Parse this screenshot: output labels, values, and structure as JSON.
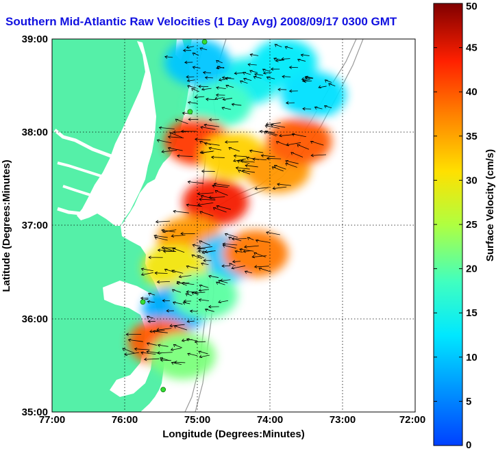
{
  "title": "Southern Mid-Atlantic Raw Velocities (1 Day Avg) 2008/09/17 0300 GMT",
  "map": {
    "xlabel": "Longitude (Degrees:Minutes)",
    "ylabel": "Latitude (Degrees:Minutes)",
    "x_ticks": [
      "77:00",
      "76:00",
      "75:00",
      "74:00",
      "73:00",
      "72:00"
    ],
    "y_ticks": [
      "39:00",
      "38:00",
      "37:00",
      "36:00",
      "35:00"
    ],
    "xlim": [
      -77,
      -72
    ],
    "ylim": [
      35,
      39
    ],
    "grid": "dotted",
    "land_color": "#55f0a8",
    "contour_color": "#999999"
  },
  "colorbar": {
    "label": "Surface Velocity (cm/s)",
    "ticks": [
      "0",
      "5",
      "10",
      "15",
      "20",
      "25",
      "30",
      "35",
      "40",
      "45",
      "50"
    ],
    "range": [
      0,
      50
    ],
    "colormap": "jet"
  },
  "chart_data": {
    "type": "heatmap",
    "title": "Southern Mid-Atlantic Raw Velocities (1 Day Avg) 2008/09/17 0300 GMT",
    "xlabel": "Longitude (Degrees:Minutes)",
    "ylabel": "Latitude (Degrees:Minutes)",
    "xlim": [
      -77,
      -72
    ],
    "ylim": [
      35,
      39
    ],
    "value_label": "Surface Velocity (cm/s)",
    "value_range": [
      0,
      50
    ],
    "regions": [
      {
        "lon": -74.3,
        "lat": 38.55,
        "speed": 14
      },
      {
        "lon": -73.8,
        "lat": 38.75,
        "speed": 13
      },
      {
        "lon": -73.4,
        "lat": 38.4,
        "speed": 12
      },
      {
        "lon": -74.7,
        "lat": 38.3,
        "speed": 18
      },
      {
        "lon": -75.0,
        "lat": 38.75,
        "speed": 10
      },
      {
        "lon": -75.0,
        "lat": 37.9,
        "speed": 42
      },
      {
        "lon": -74.5,
        "lat": 37.75,
        "speed": 32
      },
      {
        "lon": -73.9,
        "lat": 37.6,
        "speed": 36
      },
      {
        "lon": -73.6,
        "lat": 37.9,
        "speed": 40
      },
      {
        "lon": -74.75,
        "lat": 37.25,
        "speed": 44
      },
      {
        "lon": -75.1,
        "lat": 36.85,
        "speed": 36
      },
      {
        "lon": -74.6,
        "lat": 36.65,
        "speed": 10
      },
      {
        "lon": -74.2,
        "lat": 36.7,
        "speed": 38
      },
      {
        "lon": -75.3,
        "lat": 36.55,
        "speed": 30
      },
      {
        "lon": -75.3,
        "lat": 36.1,
        "speed": 8
      },
      {
        "lon": -74.9,
        "lat": 36.25,
        "speed": 20
      },
      {
        "lon": -75.5,
        "lat": 35.75,
        "speed": 40
      },
      {
        "lon": -75.2,
        "lat": 35.6,
        "speed": 22
      }
    ],
    "coastal_stations": [
      {
        "lon": -74.9,
        "lat": 38.97
      },
      {
        "lon": -75.1,
        "lat": 38.22
      },
      {
        "lon": -75.75,
        "lat": 36.18
      },
      {
        "lon": -75.47,
        "lat": 35.24
      }
    ]
  }
}
